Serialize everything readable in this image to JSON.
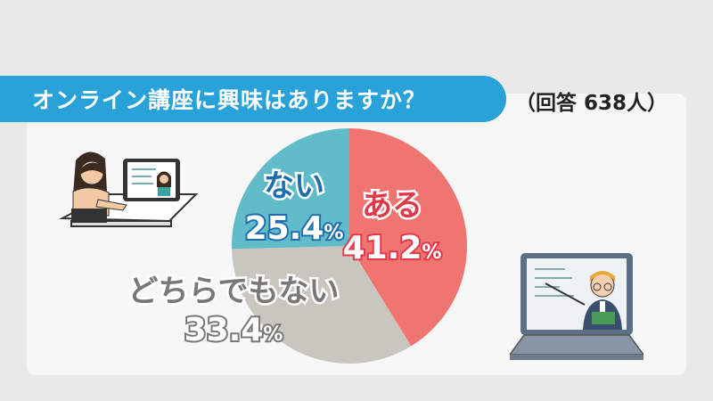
{
  "header": {
    "title": "オンライン講座に興味はありますか？",
    "respondents": "（回答 638人）"
  },
  "chart_data": {
    "type": "pie",
    "title": "オンライン講座に興味はありますか？",
    "slices": [
      {
        "label": "ある",
        "value": 41.2,
        "display": "41.2",
        "color": "#f07570",
        "label_color": "#e2394a"
      },
      {
        "label": "どちらでもない",
        "value": 33.4,
        "display": "33.4",
        "color": "#c9c6c0",
        "label_color": "#7a7876"
      },
      {
        "label": "ない",
        "value": 25.4,
        "display": "25.4",
        "color": "#5fbcc8",
        "label_color": "#1f6fae"
      }
    ],
    "percent_suffix": "%"
  },
  "illustrations": {
    "left": "student-with-tablet",
    "right": "teacher-on-laptop"
  }
}
